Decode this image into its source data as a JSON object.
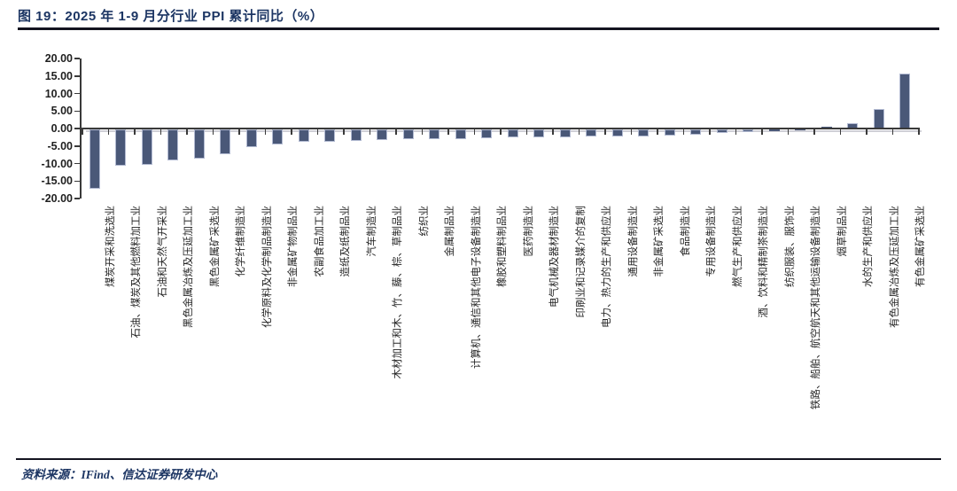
{
  "figure": {
    "title": "图 19：2025 年 1-9 月分行业 PPI 累计同比（%）",
    "source": "资料来源：IFind、信达证券研发中心"
  },
  "colors": {
    "bar_fill": "#4a5878",
    "bar_edge": "#b3bbd2",
    "axis_line": "#3a3a3a",
    "axis_shadow": "#cfcfd6",
    "title_text": "#1c3563",
    "tick_label_text": "#1f1f1f",
    "category_label_text": "#262626",
    "rule": "#141420"
  },
  "chart_data": {
    "type": "bar",
    "title": "2025 年 1-9 月分行业 PPI 累计同比（%）",
    "xlabel": "",
    "ylabel": "",
    "ylim": [
      -20,
      20
    ],
    "ytick_values": [
      20,
      15,
      10,
      5,
      0,
      -5,
      -10,
      -15,
      -20
    ],
    "ytick_labels": [
      "20.00",
      "15.00",
      "10.00",
      "5.00",
      "0.00",
      "-5.00",
      "-10.00",
      "-15.00",
      "-20.00"
    ],
    "grid": false,
    "legend": false,
    "bar_orientation": "vertical",
    "categories": [
      "煤炭开采和洗选业",
      "石油、煤炭及其他燃料加工业",
      "石油和天然气开采业",
      "黑色金属冶炼及压延加工业",
      "黑色金属矿采选业",
      "化学纤维制造业",
      "化学原料及化学制品制造业",
      "非金属矿物制品业",
      "农副食品加工业",
      "造纸及纸制品业",
      "汽车制造业",
      "木材加工和木、竹、藤、棕、草制品业",
      "纺织业",
      "金属制品业",
      "计算机、通信和其他电子设备制造业",
      "橡胶和塑料制品业",
      "医药制造业",
      "电气机械及器材制造业",
      "印刷业和记录媒介的复制",
      "电力、热力的生产和供应业",
      "通用设备制造业",
      "非金属矿采选业",
      "食品制造业",
      "专用设备制造业",
      "燃气生产和供应业",
      "酒、饮料和精制茶制造业",
      "纺织服装、服饰业",
      "铁路、船舶、航空航天和其他运输设备制造业",
      "烟草制品业",
      "水的生产和供应业",
      "有色金属冶炼及压延加工业",
      "有色金属矿采选业"
    ],
    "values": [
      -17.0,
      -10.4,
      -10.2,
      -8.8,
      -8.4,
      -7.0,
      -5.1,
      -4.2,
      -3.6,
      -3.5,
      -3.4,
      -3.0,
      -2.8,
      -2.9,
      -2.7,
      -2.5,
      -2.4,
      -2.3,
      -2.2,
      -2.1,
      -2.0,
      -1.9,
      -1.8,
      -1.6,
      -1.1,
      -0.8,
      -0.4,
      -0.1,
      0.4,
      1.4,
      5.6,
      15.7
    ]
  }
}
